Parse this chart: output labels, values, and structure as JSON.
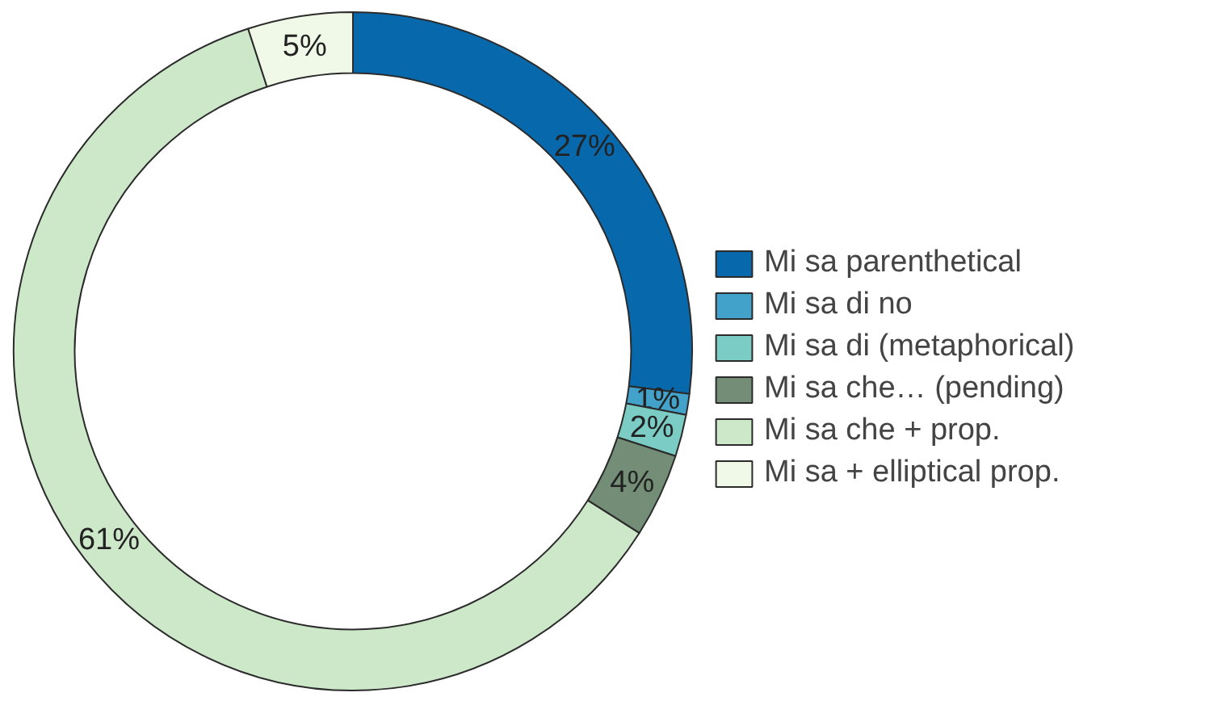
{
  "chart_data": {
    "type": "donut",
    "categories": [
      "Mi sa parenthetical",
      "Mi sa di no",
      "Mi sa di (metaphorical)",
      "Mi sa che… (pending)",
      "Mi sa che + prop.",
      "Mi sa + elliptical prop."
    ],
    "values": [
      27,
      1,
      2,
      4,
      61,
      5
    ],
    "colors": [
      "#0868ac",
      "#43a2ca",
      "#7bccc4",
      "#738d76",
      "#cce8c8",
      "#f0f9e8"
    ],
    "value_labels": [
      "27%",
      "1%",
      "2%",
      "4%",
      "61%",
      "5%"
    ],
    "legend": "right"
  }
}
